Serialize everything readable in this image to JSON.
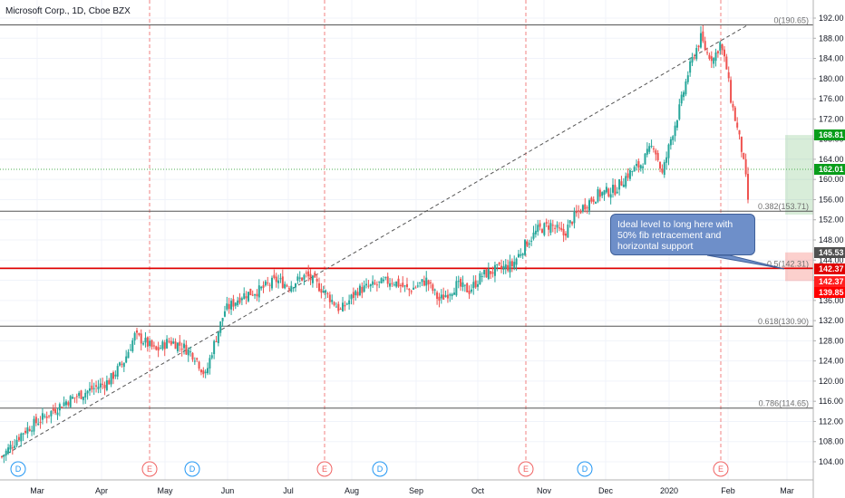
{
  "title": "Microsoft Corp., 1D, Cboe BZX",
  "annotation": "Ideal level to long here with 50% fib retracement and horizontal support",
  "colors": {
    "up": "#26a69a",
    "down": "#ef5350",
    "fib_line": "#555555",
    "support_line": "#e00000",
    "target_green": "#089d1a",
    "last_price": "#707070",
    "stop_red": "#ff0000",
    "callout": "#6e8fc9"
  },
  "chart_data": {
    "type": "candlestick",
    "ylim": [
      100,
      193
    ],
    "x_ticks": [
      "Mar",
      "Apr",
      "May",
      "Jun",
      "Jul",
      "Aug",
      "Sep",
      "Oct",
      "Nov",
      "Dec",
      "2020",
      "Feb",
      "Mar"
    ],
    "y_ticks": [
      "104.00",
      "108.00",
      "112.00",
      "116.00",
      "120.00",
      "124.00",
      "128.00",
      "132.00",
      "136.00",
      "140.00",
      "144.00",
      "148.00",
      "152.00",
      "156.00",
      "160.00",
      "164.00",
      "168.00",
      "172.00",
      "176.00",
      "180.00",
      "184.00",
      "188.00",
      "192.00"
    ],
    "fib_levels": [
      {
        "label": "0(190.65)",
        "value": 190.65
      },
      {
        "label": "0.382(153.71)",
        "value": 153.71
      },
      {
        "label": "0.5(142.31)",
        "value": 142.31
      },
      {
        "label": "0.618(130.90)",
        "value": 130.9
      },
      {
        "label": "0.786(114.65)",
        "value": 114.65
      }
    ],
    "price_labels": [
      {
        "label": "168.81",
        "value": 168.81,
        "color": "#089d1a"
      },
      {
        "label": "162.01",
        "value": 162.01,
        "color": "#089d1a"
      },
      {
        "label": "145.53",
        "value": 145.53,
        "color": "#505050"
      },
      {
        "label": "142.37",
        "value": 142.37,
        "color": "#e00000"
      },
      {
        "label": "142.37",
        "value": 142.37,
        "color": "#ff2020"
      },
      {
        "label": "139.85",
        "value": 139.85,
        "color": "#ff0000"
      }
    ],
    "events": [
      {
        "label": "D",
        "type": "dividend"
      },
      {
        "label": "E",
        "type": "earnings"
      },
      {
        "label": "D",
        "type": "dividend"
      },
      {
        "label": "E",
        "type": "earnings"
      },
      {
        "label": "D",
        "type": "dividend"
      },
      {
        "label": "E",
        "type": "earnings"
      },
      {
        "label": "D",
        "type": "dividend"
      },
      {
        "label": "E",
        "type": "earnings"
      }
    ],
    "trend_line": {
      "from": 105.0,
      "to": 190.65
    },
    "position": {
      "entry": 162.01,
      "target": 168.81,
      "stop": 142.37
    },
    "anchors": [
      {
        "t": 0,
        "v": 105
      },
      {
        "t": 10,
        "v": 110
      },
      {
        "t": 20,
        "v": 113
      },
      {
        "t": 30,
        "v": 116
      },
      {
        "t": 40,
        "v": 118
      },
      {
        "t": 50,
        "v": 120
      },
      {
        "t": 57,
        "v": 124
      },
      {
        "t": 62,
        "v": 129
      },
      {
        "t": 66,
        "v": 128
      },
      {
        "t": 72,
        "v": 126
      },
      {
        "t": 78,
        "v": 128
      },
      {
        "t": 84,
        "v": 127
      },
      {
        "t": 90,
        "v": 125
      },
      {
        "t": 95,
        "v": 121
      },
      {
        "t": 98,
        "v": 126
      },
      {
        "t": 104,
        "v": 134
      },
      {
        "t": 112,
        "v": 137
      },
      {
        "t": 120,
        "v": 138
      },
      {
        "t": 128,
        "v": 140
      },
      {
        "t": 134,
        "v": 139
      },
      {
        "t": 142,
        "v": 141
      },
      {
        "t": 150,
        "v": 138
      },
      {
        "t": 158,
        "v": 134
      },
      {
        "t": 166,
        "v": 138
      },
      {
        "t": 174,
        "v": 139
      },
      {
        "t": 182,
        "v": 140
      },
      {
        "t": 190,
        "v": 138
      },
      {
        "t": 198,
        "v": 140
      },
      {
        "t": 204,
        "v": 136
      },
      {
        "t": 212,
        "v": 139
      },
      {
        "t": 218,
        "v": 138
      },
      {
        "t": 224,
        "v": 141
      },
      {
        "t": 230,
        "v": 142
      },
      {
        "t": 238,
        "v": 143
      },
      {
        "t": 244,
        "v": 147
      },
      {
        "t": 250,
        "v": 150
      },
      {
        "t": 256,
        "v": 151
      },
      {
        "t": 262,
        "v": 149
      },
      {
        "t": 266,
        "v": 152
      },
      {
        "t": 272,
        "v": 155
      },
      {
        "t": 278,
        "v": 157
      },
      {
        "t": 286,
        "v": 158
      },
      {
        "t": 292,
        "v": 161
      },
      {
        "t": 298,
        "v": 163
      },
      {
        "t": 304,
        "v": 167
      },
      {
        "t": 308,
        "v": 161
      },
      {
        "t": 312,
        "v": 168
      },
      {
        "t": 316,
        "v": 174
      },
      {
        "t": 320,
        "v": 181
      },
      {
        "t": 323,
        "v": 185
      },
      {
        "t": 326,
        "v": 188
      },
      {
        "t": 329,
        "v": 185
      },
      {
        "t": 332,
        "v": 184
      },
      {
        "t": 335,
        "v": 187
      },
      {
        "t": 338,
        "v": 182
      },
      {
        "t": 340,
        "v": 176
      },
      {
        "t": 343,
        "v": 170
      },
      {
        "t": 345,
        "v": 166
      },
      {
        "t": 347,
        "v": 160
      },
      {
        "t": 348,
        "v": 156
      }
    ]
  }
}
